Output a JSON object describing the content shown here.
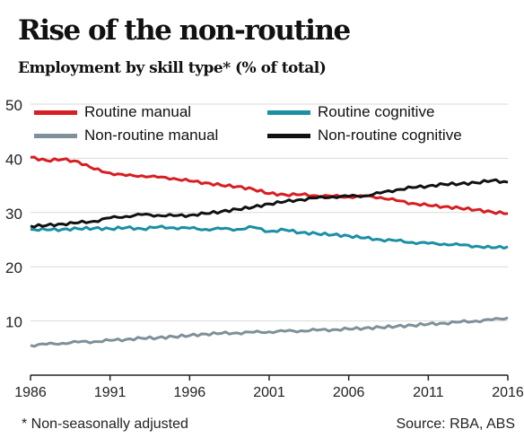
{
  "colors": {
    "routine_manual": "#d71e22",
    "routine_cognitive": "#1a8fa5",
    "nonroutine_manual": "#7f9098",
    "nonroutine_cognitive": "#111111",
    "grid": "#d9d9d9",
    "axis": "#222222"
  },
  "chart_data": {
    "type": "line",
    "title": "Rise of the non-routine",
    "subtitle": "Employment by skill type* (% of total)",
    "xlabel": "",
    "ylabel": "",
    "xlim": [
      1986,
      2016
    ],
    "ylim": [
      0,
      50
    ],
    "x_ticks": [
      "1986",
      "1991",
      "1996",
      "2001",
      "2006",
      "2011",
      "2016"
    ],
    "y_ticks": [
      "10",
      "20",
      "30",
      "40",
      "50"
    ],
    "grid": true,
    "legend_position": "top",
    "x": [
      1986,
      1987,
      1988,
      1989,
      1990,
      1991,
      1992,
      1993,
      1994,
      1995,
      1996,
      1997,
      1998,
      1999,
      2000,
      2001,
      2002,
      2003,
      2004,
      2005,
      2006,
      2007,
      2008,
      2009,
      2010,
      2011,
      2012,
      2013,
      2014,
      2015,
      2016
    ],
    "series": [
      {
        "name": "Routine manual",
        "color_key": "routine_manual",
        "values": [
          40.2,
          39.6,
          39.8,
          39.4,
          38.0,
          37.3,
          36.8,
          36.8,
          36.5,
          36.3,
          35.8,
          35.5,
          35.0,
          34.8,
          34.3,
          33.5,
          33.3,
          33.3,
          33.1,
          33.0,
          32.9,
          33.0,
          32.8,
          32.2,
          31.7,
          31.3,
          31.1,
          30.8,
          30.5,
          30.1,
          29.8
        ]
      },
      {
        "name": "Routine cognitive",
        "color_key": "routine_cognitive",
        "values": [
          26.9,
          26.8,
          26.9,
          27.0,
          27.1,
          27.0,
          27.2,
          27.0,
          27.3,
          27.2,
          27.1,
          26.9,
          27.0,
          26.9,
          27.3,
          26.5,
          26.8,
          26.3,
          26.1,
          25.9,
          25.7,
          25.3,
          25.0,
          24.8,
          24.5,
          24.3,
          24.2,
          24.0,
          23.8,
          23.5,
          23.7
        ]
      },
      {
        "name": "Non-routine manual",
        "color_key": "nonroutine_manual",
        "values": [
          5.5,
          5.7,
          5.9,
          6.1,
          6.2,
          6.4,
          6.6,
          6.8,
          6.9,
          7.1,
          7.3,
          7.6,
          7.7,
          7.8,
          7.9,
          8.0,
          8.1,
          8.2,
          8.3,
          8.4,
          8.5,
          8.7,
          8.8,
          9.0,
          9.2,
          9.4,
          9.6,
          9.8,
          10.0,
          10.2,
          10.6
        ]
      },
      {
        "name": "Non-routine cognitive",
        "color_key": "nonroutine_cognitive",
        "values": [
          27.5,
          27.6,
          27.9,
          28.1,
          28.4,
          29.0,
          29.3,
          29.6,
          29.5,
          29.4,
          29.5,
          29.8,
          30.2,
          30.6,
          31.0,
          31.6,
          32.0,
          32.4,
          32.7,
          32.9,
          33.0,
          33.1,
          33.6,
          34.2,
          34.6,
          34.9,
          35.2,
          35.3,
          35.5,
          35.9,
          35.6
        ]
      }
    ]
  },
  "footnote": "* Non-seasonally adjusted",
  "source": "Source: RBA, ABS"
}
